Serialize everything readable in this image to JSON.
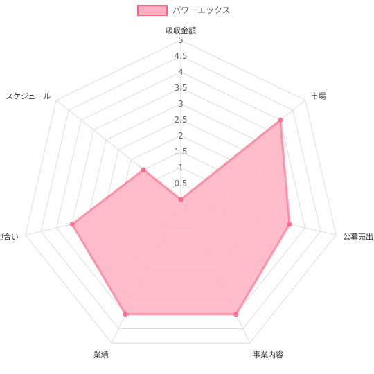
{
  "chart_data": {
    "type": "radar",
    "title": "",
    "categories": [
      "吸収金額",
      "市場",
      "公募売出比",
      "事業内容",
      "業績",
      "地合い",
      "スケジュール"
    ],
    "series": [
      {
        "name": "パワーエックス",
        "values": [
          0,
          4.0,
          3.5,
          4.0,
          4.0,
          3.5,
          1.5
        ]
      }
    ],
    "r_ticks": [
      "0.5",
      "1",
      "1.5",
      "2",
      "2.5",
      "3",
      "3.5",
      "4",
      "4.5",
      "5"
    ],
    "rlim": [
      0,
      5
    ],
    "grid": true,
    "legend_position": "top",
    "colors": {
      "fill": "#ffb1c1",
      "line": "#ff6384",
      "grid": "#dddddd"
    }
  }
}
